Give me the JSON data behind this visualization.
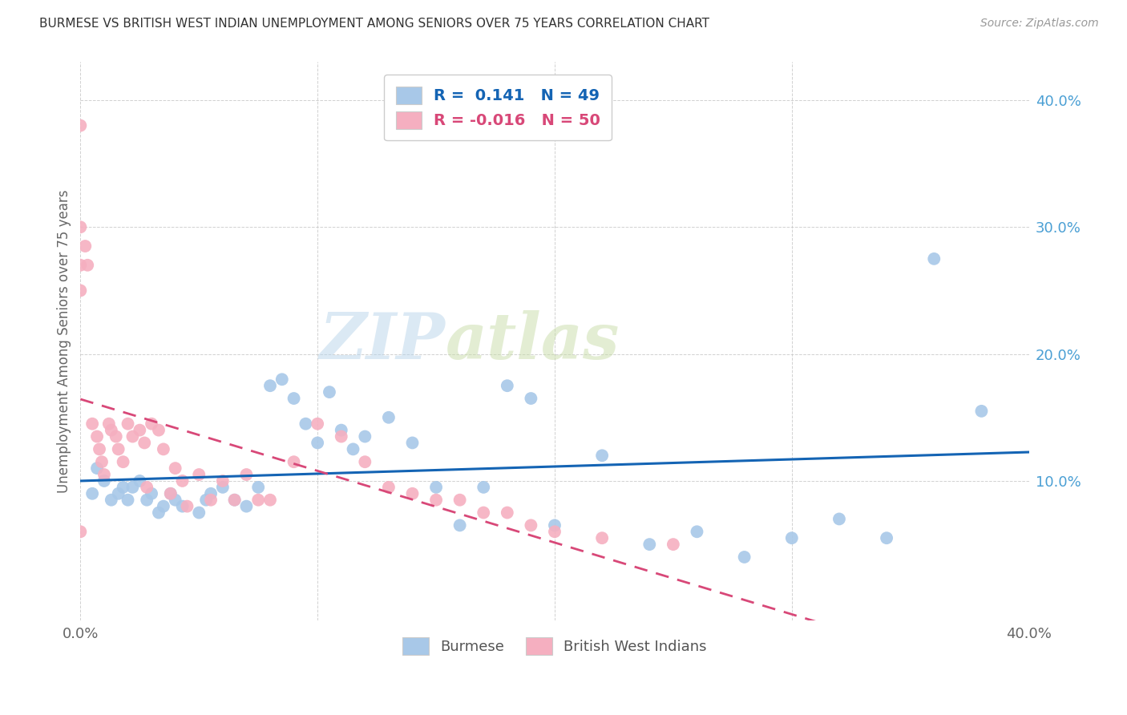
{
  "title": "BURMESE VS BRITISH WEST INDIAN UNEMPLOYMENT AMONG SENIORS OVER 75 YEARS CORRELATION CHART",
  "source": "Source: ZipAtlas.com",
  "ylabel": "Unemployment Among Seniors over 75 years",
  "xlim": [
    0.0,
    0.4
  ],
  "ylim": [
    -0.01,
    0.43
  ],
  "yticks": [
    0.1,
    0.2,
    0.3,
    0.4
  ],
  "ytick_labels": [
    "10.0%",
    "20.0%",
    "30.0%",
    "40.0%"
  ],
  "xticks": [
    0.0,
    0.1,
    0.2,
    0.3,
    0.4
  ],
  "xtick_labels": [
    "0.0%",
    "",
    "",
    "",
    "40.0%"
  ],
  "legend_r_blue": "0.141",
  "legend_n_blue": "49",
  "legend_r_pink": "-0.016",
  "legend_n_pink": "50",
  "burmese_color": "#a8c8e8",
  "bwi_color": "#f5afc0",
  "burmese_line_color": "#1464b4",
  "bwi_line_color": "#d84878",
  "burmese_x": [
    0.005,
    0.007,
    0.01,
    0.013,
    0.016,
    0.018,
    0.02,
    0.022,
    0.025,
    0.028,
    0.03,
    0.033,
    0.035,
    0.038,
    0.04,
    0.043,
    0.05,
    0.053,
    0.055,
    0.06,
    0.065,
    0.07,
    0.075,
    0.08,
    0.085,
    0.09,
    0.095,
    0.1,
    0.105,
    0.11,
    0.115,
    0.12,
    0.13,
    0.14,
    0.15,
    0.16,
    0.17,
    0.18,
    0.19,
    0.2,
    0.22,
    0.24,
    0.26,
    0.28,
    0.3,
    0.32,
    0.34,
    0.36,
    0.38
  ],
  "burmese_y": [
    0.09,
    0.11,
    0.1,
    0.085,
    0.09,
    0.095,
    0.085,
    0.095,
    0.1,
    0.085,
    0.09,
    0.075,
    0.08,
    0.09,
    0.085,
    0.08,
    0.075,
    0.085,
    0.09,
    0.095,
    0.085,
    0.08,
    0.095,
    0.175,
    0.18,
    0.165,
    0.145,
    0.13,
    0.17,
    0.14,
    0.125,
    0.135,
    0.15,
    0.13,
    0.095,
    0.065,
    0.095,
    0.175,
    0.165,
    0.065,
    0.12,
    0.05,
    0.06,
    0.04,
    0.055,
    0.07,
    0.055,
    0.275,
    0.155
  ],
  "bwi_x": [
    0.0,
    0.0,
    0.0,
    0.0,
    0.0,
    0.002,
    0.003,
    0.005,
    0.007,
    0.008,
    0.009,
    0.01,
    0.012,
    0.013,
    0.015,
    0.016,
    0.018,
    0.02,
    0.022,
    0.025,
    0.027,
    0.028,
    0.03,
    0.033,
    0.035,
    0.038,
    0.04,
    0.043,
    0.045,
    0.05,
    0.055,
    0.06,
    0.065,
    0.07,
    0.075,
    0.08,
    0.09,
    0.1,
    0.11,
    0.12,
    0.13,
    0.14,
    0.15,
    0.16,
    0.17,
    0.18,
    0.19,
    0.2,
    0.22,
    0.25
  ],
  "bwi_y": [
    0.38,
    0.3,
    0.27,
    0.25,
    0.06,
    0.285,
    0.27,
    0.145,
    0.135,
    0.125,
    0.115,
    0.105,
    0.145,
    0.14,
    0.135,
    0.125,
    0.115,
    0.145,
    0.135,
    0.14,
    0.13,
    0.095,
    0.145,
    0.14,
    0.125,
    0.09,
    0.11,
    0.1,
    0.08,
    0.105,
    0.085,
    0.1,
    0.085,
    0.105,
    0.085,
    0.085,
    0.115,
    0.145,
    0.135,
    0.115,
    0.095,
    0.09,
    0.085,
    0.085,
    0.075,
    0.075,
    0.065,
    0.06,
    0.055,
    0.05
  ]
}
